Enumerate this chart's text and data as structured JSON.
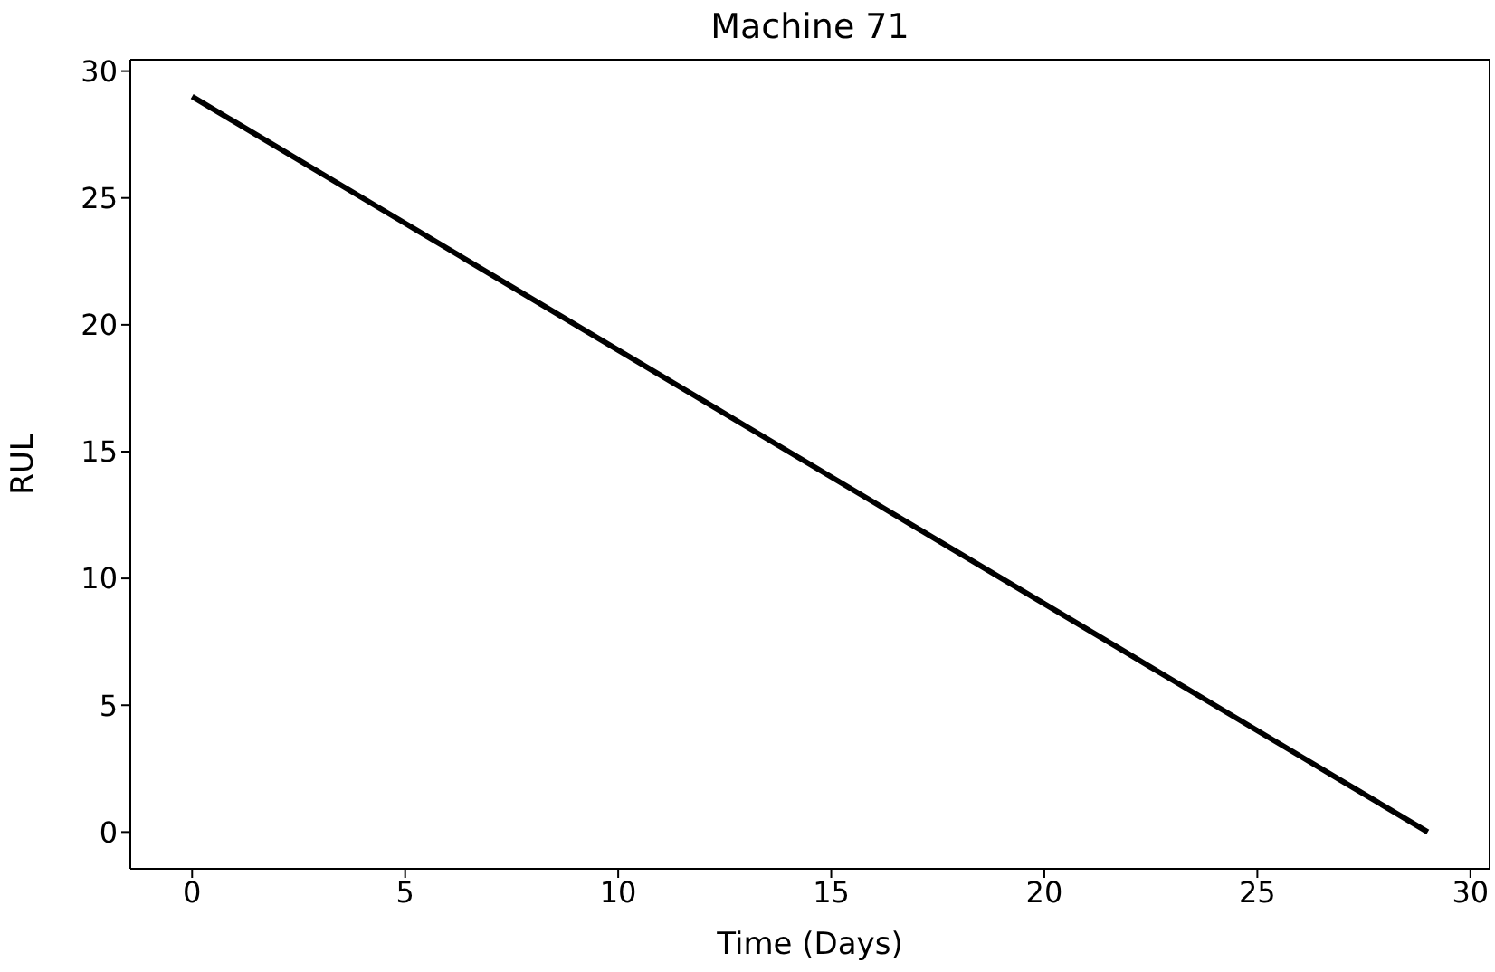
{
  "chart_data": {
    "type": "line",
    "title": "Machine 71",
    "xlabel": "Time (Days)",
    "ylabel": "RUL",
    "x": [
      0,
      1,
      2,
      3,
      4,
      5,
      6,
      7,
      8,
      9,
      10,
      11,
      12,
      13,
      14,
      15,
      16,
      17,
      18,
      19,
      20,
      21,
      22,
      23,
      24,
      25,
      26,
      27,
      28,
      29
    ],
    "series": [
      {
        "color": "#000000",
        "values": [
          29,
          28,
          27,
          26,
          25,
          24,
          23,
          22,
          21,
          20,
          19,
          18,
          17,
          16,
          15,
          14,
          13,
          12,
          11,
          10,
          9,
          8,
          7,
          6,
          5,
          4,
          3,
          2,
          1,
          0
        ]
      }
    ],
    "xlim": [
      -1.45,
      30.45
    ],
    "xticks": [
      0,
      5,
      10,
      15,
      20,
      25,
      30
    ],
    "ylim": [
      -1.45,
      30.45
    ],
    "yticks": [
      0,
      5,
      10,
      15,
      20,
      25,
      30
    ],
    "grid": false,
    "marker": "none",
    "line_style": "solid"
  }
}
